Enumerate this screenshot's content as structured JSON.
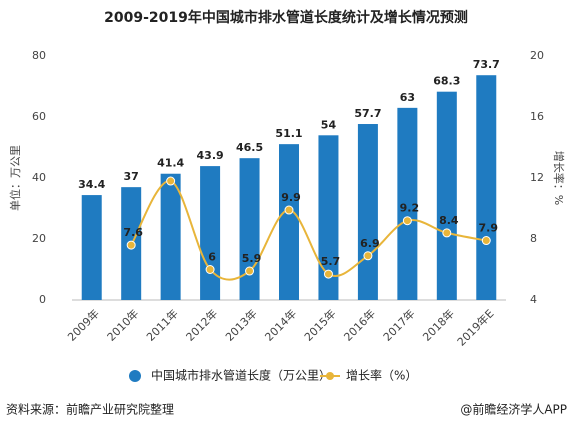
{
  "chart_data": {
    "type": "bar_line",
    "title": "2009-2019年中国城市排水管道长度统计及增长情况预测",
    "y_label": "单位：万公里",
    "y2_label": "增长率：%",
    "categories": [
      "2009年",
      "2010年",
      "2011年",
      "2012年",
      "2013年",
      "2014年",
      "2015年",
      "2016年",
      "2017年",
      "2018年",
      "2019年E"
    ],
    "series": [
      {
        "name": "中国城市排水管道长度（万公里）",
        "type": "bar",
        "color": "#1f7bc1",
        "values": [
          34.4,
          37,
          41.4,
          43.9,
          46.5,
          51.1,
          54,
          57.7,
          63,
          68.3,
          73.7
        ]
      },
      {
        "name": "增长率（%）",
        "type": "line",
        "axis": "y2",
        "color": "#e8b53a",
        "values": [
          null,
          7.6,
          11.8,
          6,
          5.9,
          9.9,
          5.7,
          6.9,
          9.2,
          8.4,
          7.9
        ],
        "value_labels": [
          null,
          "7.6",
          null,
          "6",
          "5.9",
          "9.9",
          "5.7",
          "6.9",
          "9.2",
          "8.4",
          "7.9"
        ]
      }
    ],
    "ylim": [
      0,
      80
    ],
    "yticks": [
      0,
      20,
      40,
      60,
      80
    ],
    "y2lim": [
      4,
      20
    ],
    "y2ticks": [
      4,
      8,
      12,
      16,
      20
    ],
    "source": "资料来源：前瞻产业研究院整理",
    "credit": "@前瞻经济学人APP"
  }
}
